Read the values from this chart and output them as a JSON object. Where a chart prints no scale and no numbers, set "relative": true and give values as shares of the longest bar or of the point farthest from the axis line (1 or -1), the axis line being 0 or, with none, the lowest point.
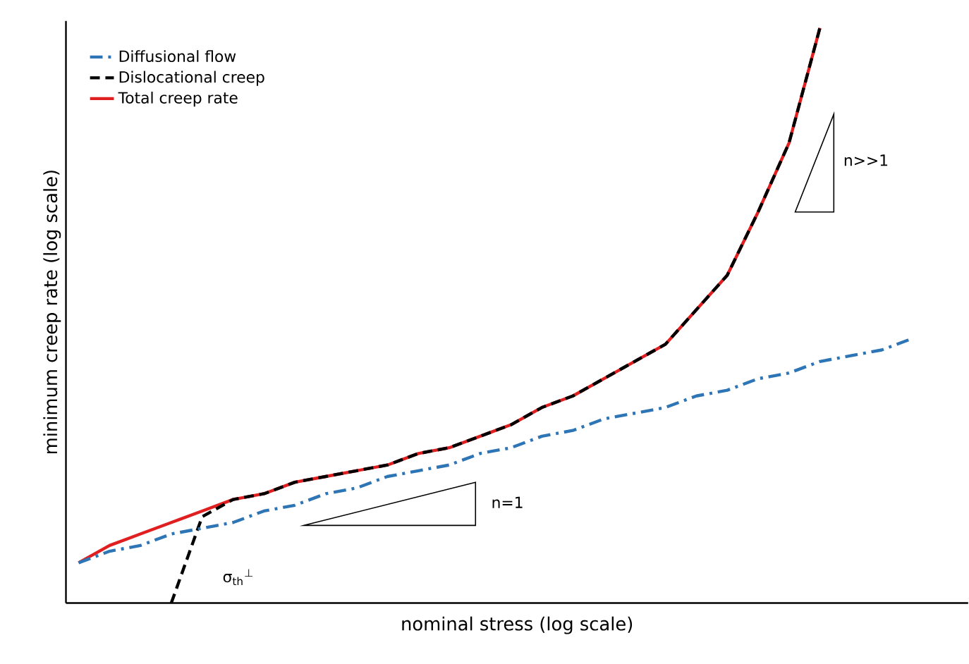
{
  "chart_data": {
    "type": "line",
    "relative": true,
    "xlabel": "nominal stress (log scale)",
    "ylabel": "minimum creep rate (log scale)",
    "categories": [
      null,
      null,
      null,
      null,
      null,
      null,
      null,
      null,
      null,
      null,
      null,
      null,
      null,
      null,
      null,
      null,
      null,
      null,
      null,
      null,
      null,
      null,
      null,
      null,
      null,
      null,
      null,
      null
    ],
    "series": [
      {
        "name": "Diffusional flow",
        "color": "#2e75b6",
        "line_style": "dashdot",
        "values": [
          0.07,
          0.09,
          0.1,
          0.12,
          0.13,
          0.14,
          0.16,
          0.17,
          0.19,
          0.2,
          0.22,
          0.23,
          0.24,
          0.26,
          0.27,
          0.29,
          0.3,
          0.32,
          0.33,
          0.34,
          0.36,
          0.37,
          0.39,
          0.4,
          0.42,
          0.43,
          0.44,
          0.46
        ]
      },
      {
        "name": "Dislocational creep",
        "color": "#000000",
        "line_style": "dashed",
        "values": [
          null,
          null,
          null,
          0,
          0.15,
          0.18,
          0.19,
          0.21,
          0.22,
          0.23,
          0.24,
          0.26,
          0.27,
          0.29,
          0.31,
          0.34,
          0.36,
          0.39,
          0.42,
          0.45,
          0.51,
          0.57,
          0.68,
          0.8,
          1.0,
          null,
          null,
          null
        ]
      },
      {
        "name": "Total creep rate",
        "color": "#e02020",
        "line_style": "solid",
        "values": [
          0.07,
          0.1,
          0.12,
          0.14,
          0.16,
          0.18,
          0.19,
          0.21,
          0.22,
          0.23,
          0.24,
          0.26,
          0.27,
          0.29,
          0.31,
          0.34,
          0.36,
          0.39,
          0.42,
          0.45,
          0.51,
          0.57,
          0.68,
          0.8,
          1.0,
          null,
          null,
          null
        ]
      }
    ],
    "legend": "top left",
    "annotations": [
      "n>>1",
      "n=1",
      "σ$_{th}$$^{⊥}$"
    ]
  }
}
